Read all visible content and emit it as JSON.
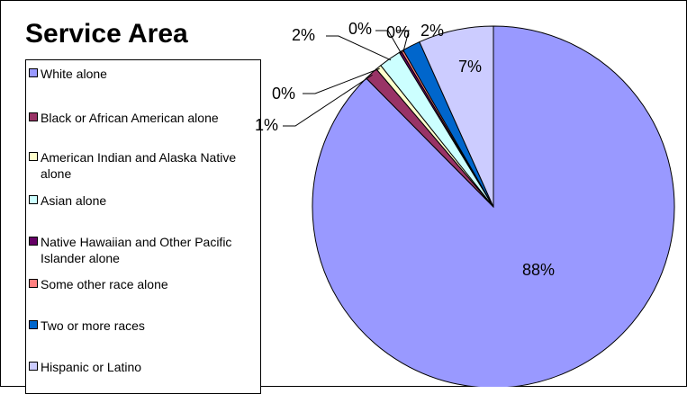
{
  "chart_data": {
    "type": "pie",
    "title": "Service Area",
    "legend_position": "left",
    "start_angle_deg": 0,
    "direction": "clockwise",
    "categories": [
      "White alone",
      "Black or African American alone",
      "American Indian and Alaska Native alone",
      "Asian alone",
      "Native Hawaiian and Other Pacific Islander alone",
      "Some other race alone",
      "Two or more races",
      "Hispanic or Latino"
    ],
    "values": [
      87.6,
      1.2,
      0.5,
      2.0,
      0.2,
      0.2,
      1.6,
      6.7
    ],
    "data_labels": [
      "88%",
      "1%",
      "0%",
      "2%",
      "0%",
      "0%",
      "2%",
      "7%"
    ],
    "colors": [
      "#9999ff",
      "#993366",
      "#ffffcc",
      "#ccffff",
      "#660066",
      "#ff8080",
      "#0066cc",
      "#ccccff"
    ]
  }
}
